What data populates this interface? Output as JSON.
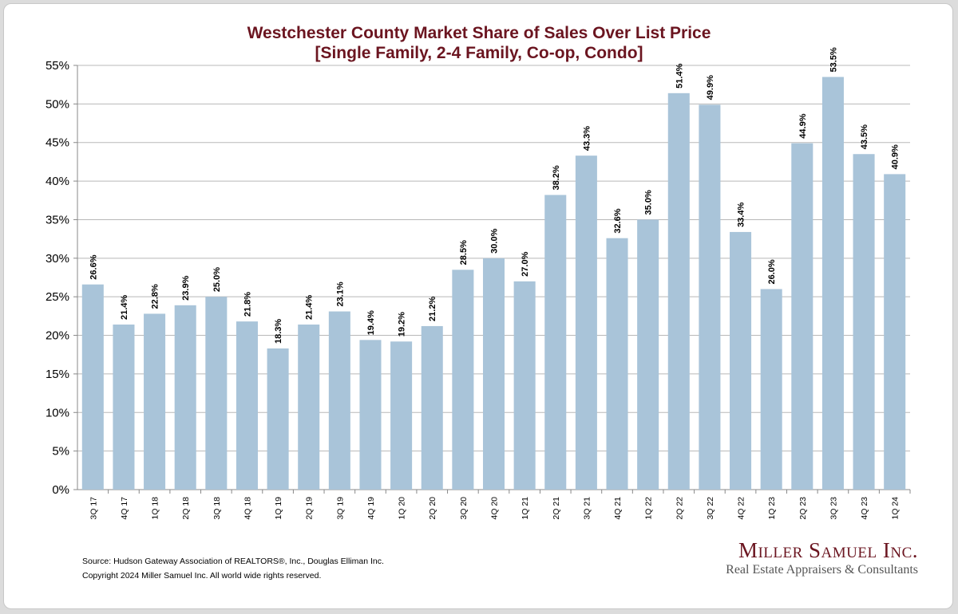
{
  "chart_data": {
    "type": "bar",
    "title": "Westchester County Market Share of Sales Over List Price",
    "subtitle": "[Single Family, 2-4 Family, Co-op, Condo]",
    "xlabel": "",
    "ylabel": "",
    "ylim": [
      0,
      55
    ],
    "ytick_step": 5,
    "ytick_suffix": "%",
    "grid": true,
    "legend": "none",
    "bar_color": "#a9c4d9",
    "categories": [
      "3Q 17",
      "4Q 17",
      "1Q 18",
      "2Q 18",
      "3Q 18",
      "4Q 18",
      "1Q 19",
      "2Q 19",
      "3Q 19",
      "4Q 19",
      "1Q 20",
      "2Q 20",
      "3Q 20",
      "4Q 20",
      "1Q 21",
      "2Q 21",
      "3Q 21",
      "4Q 21",
      "1Q 22",
      "2Q 22",
      "3Q 22",
      "4Q 22",
      "1Q 23",
      "2Q 23",
      "3Q 23",
      "4Q 23",
      "1Q 24"
    ],
    "values": [
      26.6,
      21.4,
      22.8,
      23.9,
      25.0,
      21.8,
      18.3,
      21.4,
      23.1,
      19.4,
      19.2,
      21.2,
      28.5,
      30.0,
      27.0,
      38.2,
      43.3,
      32.6,
      35.0,
      51.4,
      49.9,
      33.4,
      26.0,
      44.9,
      53.5,
      43.5,
      40.9
    ],
    "labels": [
      "26.6%",
      "21.4%",
      "22.8%",
      "23.9%",
      "25.0%",
      "21.8%",
      "18.3%",
      "21.4%",
      "23.1%",
      "19.4%",
      "19.2%",
      "21.2%",
      "28.5%",
      "30.0%",
      "27.0%",
      "38.2%",
      "43.3%",
      "32.6%",
      "35.0%",
      "51.4%",
      "49.9%",
      "33.4%",
      "26.0%",
      "44.9%",
      "53.5%",
      "43.5%",
      "40.9%"
    ]
  },
  "footer": {
    "source": "Source: Hudson Gateway Association of REALTORS®, Inc., Douglas Elliman Inc.",
    "copyright": "Copyright 2024 Miller Samuel Inc.  All world wide rights reserved."
  },
  "logo": {
    "name": "Miller Samuel Inc.",
    "tagline": "Real Estate Appraisers & Consultants",
    "color": "#6b1520"
  }
}
